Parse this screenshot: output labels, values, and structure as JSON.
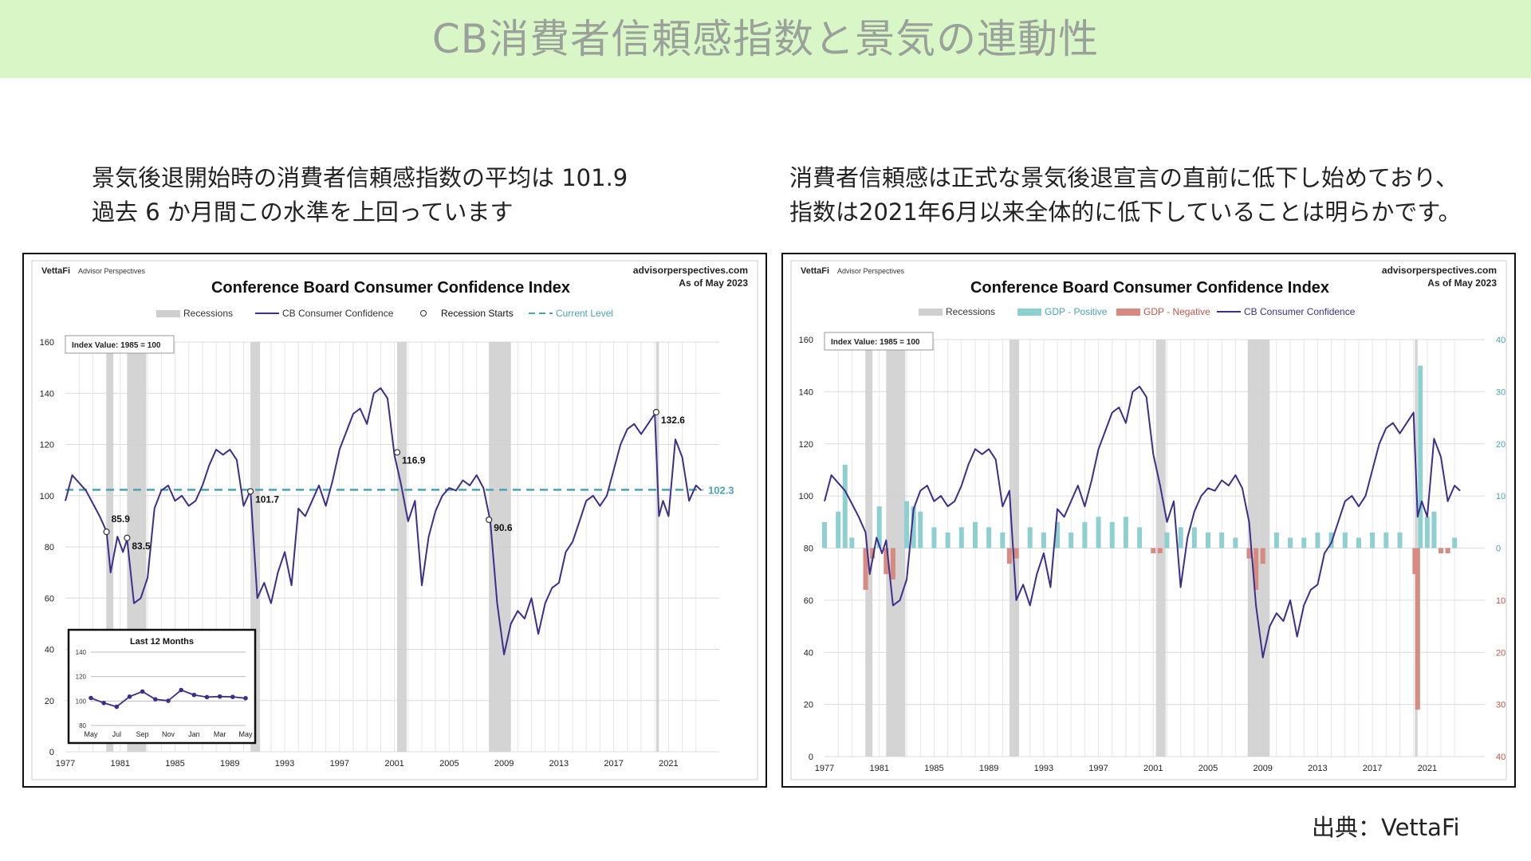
{
  "header": {
    "title": "CB消費者信頼感指数と景気の連動性"
  },
  "captions": {
    "left_line1": "景気後退開始時の消費者信頼感指数の平均は 101.9",
    "left_line2": "過去 6 か月間この水準を上回っています",
    "right_line1": "消費者信頼感は正式な景気後退宣言の直前に低下し始めており、",
    "right_line2": "指数は2021年6月以来全体的に低下していることは明らかです。"
  },
  "source": "出典：VettaFi",
  "colors": {
    "index_line": "#3c2f8c",
    "current_level": "#4aa3b5",
    "recession": "#cfcfcf",
    "gdp_positive": "#8ecfd0",
    "gdp_negative": "#d68a80"
  },
  "chart_data": [
    {
      "type": "line",
      "brand": "VettaFi",
      "brand_sub": "Advisor Perspectives",
      "site": "advisorperspectives.com",
      "asof": "As of May 2023",
      "title": "Conference Board Consumer Confidence Index",
      "legend": [
        "Recessions",
        "CB Consumer Confidence",
        "Recession Starts",
        "Current Level"
      ],
      "note": "Index Value: 1985 = 100",
      "xticks": [
        "1977",
        "1981",
        "1985",
        "1989",
        "1993",
        "1997",
        "2001",
        "2005",
        "2009",
        "2013",
        "2017",
        "2021"
      ],
      "ylim": [
        0,
        160
      ],
      "yticks": [
        "0",
        "20",
        "40",
        "60",
        "80",
        "100",
        "120",
        "140",
        "160"
      ],
      "current_level": 102.3,
      "current_level_label": "102.3",
      "recessions": [
        [
          1980.0,
          1980.5
        ],
        [
          1981.5,
          1982.9
        ],
        [
          1990.5,
          1991.2
        ],
        [
          2001.2,
          2001.9
        ],
        [
          2007.9,
          2009.5
        ],
        [
          2020.1,
          2020.3
        ]
      ],
      "recession_starts": [
        {
          "x": 1980.0,
          "y": 85.9,
          "label": "85.9"
        },
        {
          "x": 1981.5,
          "y": 83.5,
          "label": "83.5"
        },
        {
          "x": 1990.5,
          "y": 101.7,
          "label": "101.7"
        },
        {
          "x": 2001.2,
          "y": 116.9,
          "label": "116.9"
        },
        {
          "x": 2007.9,
          "y": 90.6,
          "label": "90.6"
        },
        {
          "x": 2020.1,
          "y": 132.6,
          "label": "132.6"
        }
      ],
      "series": [
        {
          "name": "CB Consumer Confidence",
          "x": [
            1977.0,
            1977.5,
            1978.0,
            1978.5,
            1979.0,
            1979.5,
            1980.0,
            1980.3,
            1980.8,
            1981.2,
            1981.5,
            1982.0,
            1982.5,
            1983.0,
            1983.5,
            1984.0,
            1984.5,
            1985.0,
            1985.5,
            1986.0,
            1986.5,
            1987.0,
            1987.5,
            1988.0,
            1988.5,
            1989.0,
            1989.5,
            1990.0,
            1990.5,
            1991.0,
            1991.5,
            1992.0,
            1992.5,
            1993.0,
            1993.5,
            1994.0,
            1994.5,
            1995.0,
            1995.5,
            1996.0,
            1996.5,
            1997.0,
            1997.5,
            1998.0,
            1998.5,
            1999.0,
            1999.5,
            2000.0,
            2000.5,
            2001.0,
            2001.5,
            2002.0,
            2002.5,
            2003.0,
            2003.5,
            2004.0,
            2004.5,
            2005.0,
            2005.5,
            2006.0,
            2006.5,
            2007.0,
            2007.5,
            2008.0,
            2008.5,
            2009.0,
            2009.5,
            2010.0,
            2010.5,
            2011.0,
            2011.5,
            2012.0,
            2012.5,
            2013.0,
            2013.5,
            2014.0,
            2014.5,
            2015.0,
            2015.5,
            2016.0,
            2016.5,
            2017.0,
            2017.5,
            2018.0,
            2018.5,
            2019.0,
            2019.5,
            2020.0,
            2020.3,
            2020.6,
            2021.0,
            2021.5,
            2022.0,
            2022.5,
            2023.0,
            2023.4
          ],
          "y": [
            98,
            108,
            105,
            102,
            97,
            92,
            86,
            70,
            84,
            78,
            83,
            58,
            60,
            68,
            95,
            102,
            104,
            98,
            100,
            96,
            98,
            104,
            112,
            118,
            116,
            118,
            114,
            96,
            102,
            60,
            66,
            58,
            70,
            78,
            65,
            95,
            92,
            98,
            104,
            96,
            106,
            118,
            125,
            132,
            134,
            128,
            140,
            142,
            138,
            116,
            104,
            90,
            98,
            65,
            84,
            94,
            100,
            103,
            102,
            106,
            104,
            108,
            103,
            90,
            58,
            38,
            50,
            55,
            52,
            60,
            46,
            58,
            64,
            66,
            78,
            82,
            90,
            98,
            100,
            96,
            100,
            110,
            120,
            126,
            128,
            124,
            128,
            132,
            92,
            98,
            92,
            122,
            115,
            98,
            104,
            102
          ]
        }
      ],
      "inset": {
        "title": "Last 12 Months",
        "xticks": [
          "May",
          "Jul",
          "Sep",
          "Nov",
          "Jan",
          "Mar",
          "May"
        ],
        "ylim": [
          80,
          140
        ],
        "yticks": [
          "80",
          "100",
          "120",
          "140"
        ],
        "values": [
          102.5,
          98.4,
          95.3,
          103.6,
          107.8,
          101.4,
          100.2,
          109.0,
          105.0,
          103.2,
          103.7,
          103.4,
          102.3
        ]
      }
    },
    {
      "type": "bar",
      "brand": "VettaFi",
      "brand_sub": "Advisor Perspectives",
      "site": "advisorperspectives.com",
      "asof": "As of May 2023",
      "title": "Conference Board Consumer Confidence Index",
      "legend": [
        "Recessions",
        "GDP - Positive",
        "GDP - Negative",
        "CB Consumer Confidence"
      ],
      "note": "Index Value: 1985 = 100",
      "xticks": [
        "1977",
        "1981",
        "1985",
        "1989",
        "1993",
        "1997",
        "2001",
        "2005",
        "2009",
        "2013",
        "2017",
        "2021"
      ],
      "ylim": [
        0,
        160
      ],
      "yticks": [
        "0",
        "20",
        "40",
        "60",
        "80",
        "100",
        "120",
        "140",
        "160"
      ],
      "y2lim": [
        -40,
        40
      ],
      "y2ticks_right": [
        "40",
        "30",
        "20",
        "10",
        "0",
        "10",
        "20",
        "30",
        "40"
      ],
      "recessions": [
        [
          1980.0,
          1980.5
        ],
        [
          1981.5,
          1982.9
        ],
        [
          1990.5,
          1991.2
        ],
        [
          2001.2,
          2001.9
        ],
        [
          2007.9,
          2009.5
        ],
        [
          2020.1,
          2020.3
        ]
      ],
      "gdp": {
        "x": [
          1977,
          1978,
          1978.5,
          1979,
          1980,
          1980.5,
          1981,
          1981.5,
          1982,
          1983,
          1983.5,
          1984,
          1985,
          1986,
          1987,
          1988,
          1989,
          1990,
          1990.5,
          1991,
          1992,
          1993,
          1994,
          1995,
          1996,
          1997,
          1998,
          1999,
          2000,
          2001,
          2001.5,
          2002,
          2003,
          2004,
          2005,
          2006,
          2007,
          2008,
          2008.5,
          2009,
          2010,
          2011,
          2012,
          2013,
          2014,
          2015,
          2016,
          2017,
          2018,
          2019,
          2020.1,
          2020.3,
          2020.5,
          2021,
          2021.5,
          2022,
          2022.5,
          2023
        ],
        "values": [
          5,
          7,
          16,
          2,
          -8,
          -2,
          8,
          -5,
          -6,
          9,
          8,
          7,
          4,
          3,
          4,
          5,
          4,
          3,
          -3,
          -2,
          4,
          3,
          5,
          3,
          5,
          6,
          5,
          6,
          4,
          -1,
          -1,
          3,
          4,
          4,
          3,
          3,
          2,
          -2,
          -8,
          -3,
          3,
          2,
          2,
          3,
          3,
          3,
          2,
          3,
          3,
          3,
          -5,
          -31,
          35,
          6,
          7,
          -1,
          -1,
          2
        ]
      },
      "series": [
        {
          "name": "CB Consumer Confidence"
        }
      ]
    }
  ]
}
